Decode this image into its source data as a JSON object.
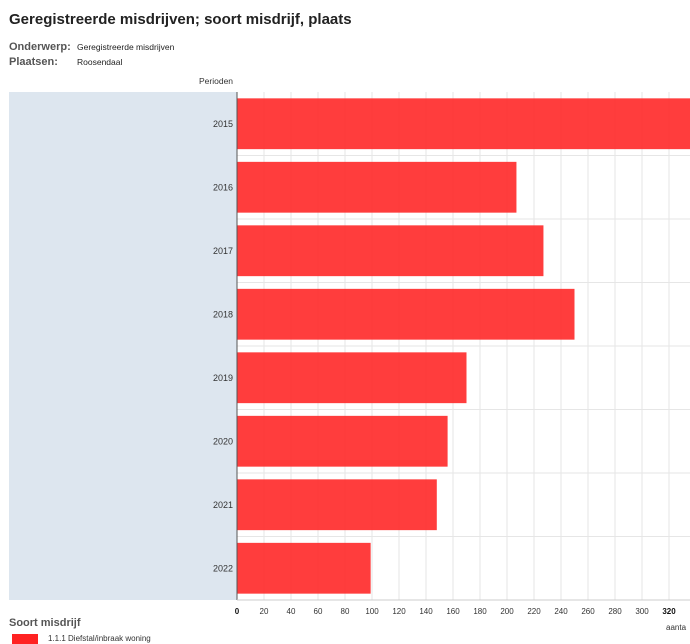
{
  "header": {
    "title": "Geregistreerde misdrijven; soort misdrijf, plaats",
    "onderwerp_label": "Onderwerp:",
    "onderwerp_value": "Geregistreerde misdrijven",
    "plaatsen_label": "Plaatsen:",
    "plaatsen_value": "Roosendaal"
  },
  "legend": {
    "title": "Soort misdrijf",
    "item": "1.1.1 Diefstal/inbraak woning"
  },
  "colors": {
    "bar": "#ff2222",
    "highlight_band": "#dde6ef",
    "grid": "#e6e6e6"
  },
  "chart_data": {
    "type": "bar",
    "orientation": "horizontal",
    "category_axis_label": "Perioden",
    "value_axis_label": "aanta",
    "categories": [
      "2015",
      "2016",
      "2017",
      "2018",
      "2019",
      "2020",
      "2021",
      "2022"
    ],
    "series": [
      {
        "values": [
          345,
          207,
          227,
          250,
          170,
          156,
          148,
          99
        ]
      }
    ],
    "xlim": [
      0,
      335
    ],
    "xticks": [
      0,
      20,
      40,
      60,
      80,
      100,
      120,
      140,
      160,
      180,
      200,
      220,
      240,
      260,
      280,
      300,
      320
    ],
    "grid": true,
    "legend_position": "bottom-left"
  }
}
